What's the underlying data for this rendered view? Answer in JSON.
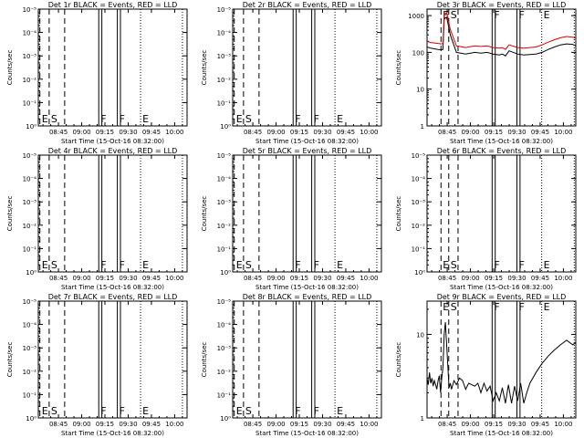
{
  "chart_data": [
    {
      "type": "line",
      "title": "Det 1r BLACK = Events, RED = LLD",
      "xlabel": "Start Time (15-Oct-16 08:32:00)",
      "ylabel": "Counts/sec",
      "x_ticks": [
        "08:45",
        "09:00",
        "09:15",
        "09:30",
        "09:45",
        "10:00"
      ],
      "y_ticks": [
        "10⁰",
        "10⁻¹",
        "10⁻²",
        "10⁻³",
        "10⁻⁴",
        "10⁻⁵"
      ],
      "y_scale": "log-inverted",
      "markers": [
        {
          "label": "E",
          "time": "08:33",
          "style": "dashed"
        },
        {
          "label": "S",
          "time": "08:39",
          "style": "dashed"
        },
        {
          "label": "",
          "time": "08:49",
          "style": "dashed"
        },
        {
          "label": "F",
          "time": "09:11",
          "style": "solid"
        },
        {
          "label": "",
          "time": "09:13",
          "style": "solid"
        },
        {
          "label": "F",
          "time": "09:23",
          "style": "solid"
        },
        {
          "label": "",
          "time": "09:25",
          "style": "solid"
        },
        {
          "label": "E",
          "time": "09:38",
          "style": "dotted"
        },
        {
          "label": "",
          "time": "10:05",
          "style": "dotted"
        }
      ],
      "series": []
    },
    {
      "type": "line",
      "title": "Det 2r BLACK = Events, RED = LLD",
      "xlabel": "Start Time (15-Oct-16 08:32:00)",
      "ylabel": "Counts/sec",
      "x_ticks": [
        "08:45",
        "09:00",
        "09:15",
        "09:30",
        "09:45",
        "10:00"
      ],
      "y_ticks": [
        "10⁰",
        "10⁻¹",
        "10⁻²",
        "10⁻³",
        "10⁻⁴",
        "10⁻⁵"
      ],
      "y_scale": "log-inverted",
      "markers": [
        {
          "label": "E",
          "time": "08:33",
          "style": "dashed"
        },
        {
          "label": "S",
          "time": "08:39",
          "style": "dashed"
        },
        {
          "label": "",
          "time": "08:49",
          "style": "dashed"
        },
        {
          "label": "F",
          "time": "09:11",
          "style": "solid"
        },
        {
          "label": "",
          "time": "09:13",
          "style": "solid"
        },
        {
          "label": "F",
          "time": "09:23",
          "style": "solid"
        },
        {
          "label": "",
          "time": "09:25",
          "style": "solid"
        },
        {
          "label": "E",
          "time": "09:38",
          "style": "dotted"
        },
        {
          "label": "",
          "time": "10:05",
          "style": "dotted"
        }
      ],
      "series": []
    },
    {
      "type": "line",
      "title": "Det 3r BLACK = Events, RED = LLD",
      "xlabel": "Start Time (15-Oct-16 08:32:00)",
      "ylabel": "Counts/sec",
      "x_ticks": [
        "08:45",
        "09:00",
        "09:15",
        "09:30",
        "09:45",
        "10:00"
      ],
      "y_ticks": [
        "1",
        "10",
        "100",
        "1000"
      ],
      "y_scale": "log",
      "markers": [
        {
          "label": "E",
          "time": "08:41",
          "style": "dashed"
        },
        {
          "label": "S",
          "time": "08:46",
          "style": "dashed"
        },
        {
          "label": "",
          "time": "08:52",
          "style": "dashed"
        },
        {
          "label": "F",
          "time": "09:14",
          "style": "solid"
        },
        {
          "label": "",
          "time": "09:16",
          "style": "solid"
        },
        {
          "label": "F",
          "time": "09:30",
          "style": "solid"
        },
        {
          "label": "",
          "time": "09:32",
          "style": "solid"
        },
        {
          "label": "E",
          "time": "09:46",
          "style": "dotted"
        },
        {
          "label": "",
          "time": "10:07",
          "style": "dotted"
        }
      ],
      "series": [
        {
          "color": "#000000",
          "x": [
            512,
            518,
            524,
            530,
            535,
            538,
            540,
            544,
            550,
            560,
            575,
            590,
            600,
            610,
            620,
            630,
            635,
            640,
            646,
            660,
            670,
            690,
            700,
            710,
            720,
            730,
            740,
            750,
            755
          ],
          "y": [
            140,
            130,
            125,
            120,
            118,
            120,
            800,
            900,
            300,
            100,
            90,
            100,
            95,
            100,
            90,
            85,
            90,
            80,
            110,
            90,
            85,
            90,
            100,
            120,
            140,
            160,
            170,
            165,
            150
          ]
        },
        {
          "color": "#dd0000",
          "x": [
            512,
            518,
            524,
            530,
            535,
            538,
            540,
            544,
            550,
            560,
            575,
            590,
            600,
            610,
            620,
            630,
            635,
            640,
            646,
            660,
            670,
            690,
            700,
            710,
            720,
            730,
            740,
            750,
            755
          ],
          "y": [
            200,
            185,
            180,
            175,
            170,
            175,
            1100,
            1200,
            420,
            150,
            135,
            150,
            145,
            150,
            135,
            130,
            135,
            120,
            160,
            135,
            130,
            140,
            160,
            190,
            220,
            250,
            270,
            260,
            240
          ]
        }
      ]
    },
    {
      "type": "line",
      "title": "Det 4r BLACK = Events, RED = LLD",
      "xlabel": "Start Time (15-Oct-16 08:32:00)",
      "ylabel": "Counts/sec",
      "x_ticks": [
        "08:45",
        "09:00",
        "09:15",
        "09:30",
        "09:45",
        "10:00"
      ],
      "y_ticks": [
        "10⁰",
        "10⁻¹",
        "10⁻²",
        "10⁻³",
        "10⁻⁴",
        "10⁻⁵"
      ],
      "y_scale": "log-inverted",
      "markers": [
        {
          "label": "E",
          "time": "08:33",
          "style": "dashed"
        },
        {
          "label": "S",
          "time": "08:39",
          "style": "dashed"
        },
        {
          "label": "",
          "time": "08:49",
          "style": "dashed"
        },
        {
          "label": "F",
          "time": "09:11",
          "style": "solid"
        },
        {
          "label": "",
          "time": "09:13",
          "style": "solid"
        },
        {
          "label": "F",
          "time": "09:23",
          "style": "solid"
        },
        {
          "label": "",
          "time": "09:25",
          "style": "solid"
        },
        {
          "label": "E",
          "time": "09:38",
          "style": "dotted"
        },
        {
          "label": "",
          "time": "10:05",
          "style": "dotted"
        }
      ],
      "series": []
    },
    {
      "type": "line",
      "title": "Det 5r BLACK = Events, RED = LLD",
      "xlabel": "Start Time (15-Oct-16 08:32:00)",
      "ylabel": "Counts/sec",
      "x_ticks": [
        "08:45",
        "09:00",
        "09:15",
        "09:30",
        "09:45",
        "10:00"
      ],
      "y_ticks": [
        "10⁰",
        "10⁻¹",
        "10⁻²",
        "10⁻³",
        "10⁻⁴",
        "10⁻⁵"
      ],
      "y_scale": "log-inverted",
      "markers": [
        {
          "label": "E",
          "time": "08:33",
          "style": "dashed"
        },
        {
          "label": "S",
          "time": "08:39",
          "style": "dashed"
        },
        {
          "label": "",
          "time": "08:49",
          "style": "dashed"
        },
        {
          "label": "F",
          "time": "09:11",
          "style": "solid"
        },
        {
          "label": "",
          "time": "09:13",
          "style": "solid"
        },
        {
          "label": "F",
          "time": "09:23",
          "style": "solid"
        },
        {
          "label": "",
          "time": "09:25",
          "style": "solid"
        },
        {
          "label": "E",
          "time": "09:38",
          "style": "dotted"
        },
        {
          "label": "",
          "time": "10:05",
          "style": "dotted"
        }
      ],
      "series": []
    },
    {
      "type": "line",
      "title": "Det 6r BLACK = Events, RED = LLD",
      "xlabel": "Start Time (15-Oct-16 08:32:00)",
      "ylabel": "Counts/sec",
      "x_ticks": [
        "08:45",
        "09:00",
        "09:15",
        "09:30",
        "09:45",
        "10:00"
      ],
      "y_ticks": [
        "10⁰",
        "10⁻¹",
        "10⁻²",
        "10⁻³",
        "10⁻⁴",
        "10⁻⁵"
      ],
      "y_scale": "log-inverted",
      "markers": [
        {
          "label": "E",
          "time": "08:41",
          "style": "dashed"
        },
        {
          "label": "S",
          "time": "08:46",
          "style": "dashed"
        },
        {
          "label": "",
          "time": "08:52",
          "style": "dashed"
        },
        {
          "label": "F",
          "time": "09:14",
          "style": "solid"
        },
        {
          "label": "",
          "time": "09:16",
          "style": "solid"
        },
        {
          "label": "F",
          "time": "09:30",
          "style": "solid"
        },
        {
          "label": "",
          "time": "09:32",
          "style": "solid"
        },
        {
          "label": "E",
          "time": "09:46",
          "style": "dotted"
        },
        {
          "label": "",
          "time": "10:07",
          "style": "dotted"
        }
      ],
      "series": []
    },
    {
      "type": "line",
      "title": "Det 7r BLACK = Events, RED = LLD",
      "xlabel": "Start Time (15-Oct-16 08:32:00)",
      "ylabel": "Counts/sec",
      "x_ticks": [
        "08:45",
        "09:00",
        "09:15",
        "09:30",
        "09:45",
        "10:00"
      ],
      "y_ticks": [
        "10⁰",
        "10⁻¹",
        "10⁻²",
        "10⁻³",
        "10⁻⁴",
        "10⁻⁵"
      ],
      "y_scale": "log-inverted",
      "markers": [
        {
          "label": "E",
          "time": "08:33",
          "style": "dashed"
        },
        {
          "label": "S",
          "time": "08:39",
          "style": "dashed"
        },
        {
          "label": "",
          "time": "08:49",
          "style": "dashed"
        },
        {
          "label": "F",
          "time": "09:11",
          "style": "solid"
        },
        {
          "label": "",
          "time": "09:13",
          "style": "solid"
        },
        {
          "label": "F",
          "time": "09:23",
          "style": "solid"
        },
        {
          "label": "",
          "time": "09:25",
          "style": "solid"
        },
        {
          "label": "E",
          "time": "09:38",
          "style": "dotted"
        },
        {
          "label": "",
          "time": "10:05",
          "style": "dotted"
        }
      ],
      "series": []
    },
    {
      "type": "line",
      "title": "Det 8r BLACK = Events, RED = LLD",
      "xlabel": "Start Time (15-Oct-16 08:32:00)",
      "ylabel": "Counts/sec",
      "x_ticks": [
        "08:45",
        "09:00",
        "09:15",
        "09:30",
        "09:45",
        "10:00"
      ],
      "y_ticks": [
        "10⁰",
        "10⁻¹",
        "10⁻²",
        "10⁻³",
        "10⁻⁴",
        "10⁻⁵"
      ],
      "y_scale": "log-inverted",
      "markers": [
        {
          "label": "E",
          "time": "08:33",
          "style": "dashed"
        },
        {
          "label": "S",
          "time": "08:39",
          "style": "dashed"
        },
        {
          "label": "",
          "time": "08:49",
          "style": "dashed"
        },
        {
          "label": "F",
          "time": "09:11",
          "style": "solid"
        },
        {
          "label": "",
          "time": "09:13",
          "style": "solid"
        },
        {
          "label": "F",
          "time": "09:23",
          "style": "solid"
        },
        {
          "label": "",
          "time": "09:25",
          "style": "solid"
        },
        {
          "label": "E",
          "time": "09:38",
          "style": "dotted"
        },
        {
          "label": "",
          "time": "10:05",
          "style": "dotted"
        }
      ],
      "series": []
    },
    {
      "type": "line",
      "title": "Det 9r BLACK = Events, RED = LLD",
      "xlabel": "Start Time (15-Oct-16 08:32:00)",
      "ylabel": "Counts/sec",
      "x_ticks": [
        "08:45",
        "09:00",
        "09:15",
        "09:30",
        "09:45",
        "10:00"
      ],
      "y_ticks": [
        "1",
        "10"
      ],
      "y_scale": "log",
      "markers": [
        {
          "label": "E",
          "time": "08:41",
          "style": "dashed"
        },
        {
          "label": "S",
          "time": "08:46",
          "style": "dashed"
        },
        {
          "label": "",
          "time": "08:52",
          "style": "dashed"
        },
        {
          "label": "F",
          "time": "09:14",
          "style": "solid"
        },
        {
          "label": "",
          "time": "09:16",
          "style": "solid"
        },
        {
          "label": "F",
          "time": "09:30",
          "style": "solid"
        },
        {
          "label": "",
          "time": "09:32",
          "style": "solid"
        },
        {
          "label": "E",
          "time": "09:46",
          "style": "dotted"
        },
        {
          "label": "",
          "time": "10:07",
          "style": "dotted"
        }
      ],
      "series": [
        {
          "color": "#000000",
          "x": [
            512,
            514,
            516,
            518,
            520,
            522,
            524,
            526,
            528,
            530,
            532,
            534,
            536,
            538,
            540,
            542,
            548,
            550,
            552,
            556,
            560,
            565,
            570,
            575,
            580,
            585,
            590,
            595,
            600,
            605,
            610,
            615,
            620,
            625,
            630,
            635,
            640,
            645,
            650,
            655,
            660,
            665,
            670,
            675,
            680,
            690,
            700,
            710,
            720,
            730,
            740,
            750,
            755
          ],
          "y": [
            3.0,
            2.5,
            3.5,
            2.6,
            3.0,
            2.4,
            2.8,
            2.5,
            2.2,
            2.8,
            3.2,
            2.0,
            3.0,
            4.0,
            10.0,
            14.0,
            2.3,
            2.6,
            2.2,
            2.8,
            2.5,
            3.0,
            2.8,
            2.2,
            2.6,
            2.5,
            2.4,
            2.6,
            2.0,
            2.6,
            2.1,
            2.4,
            1.6,
            2.0,
            1.6,
            2.3,
            1.5,
            2.5,
            1.5,
            2.4,
            1.6,
            2.6,
            1.5,
            2.0,
            2.6,
            3.5,
            4.5,
            5.5,
            6.5,
            7.5,
            8.5,
            7.5,
            8.0
          ]
        }
      ]
    }
  ]
}
